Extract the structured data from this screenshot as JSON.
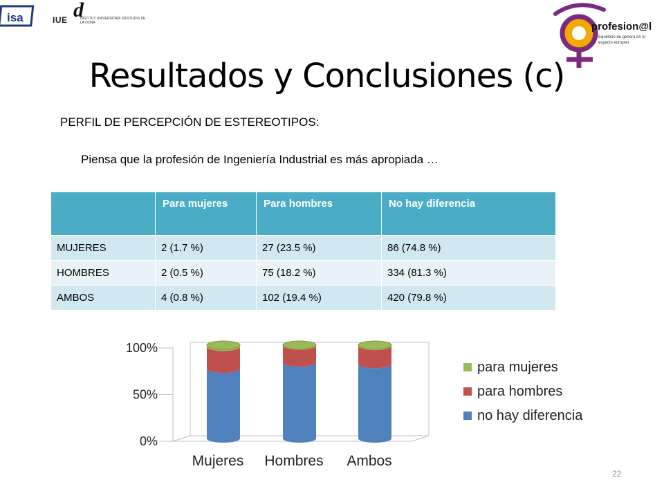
{
  "logos": {
    "isa": "isa",
    "iue": "IUE",
    "iue_d": "d",
    "iue_sub": "INSTITUT UNIVERSITARI D'ESTUDIS DE LA DONA",
    "profesional": "profesion@l",
    "profesional_sub": "Equilibrio de genero en el espacio europeo"
  },
  "slide": {
    "title": "Resultados y Conclusiones (c)",
    "section": "PERFIL DE PERCEPCIÓN DE ESTEREOTIPOS:",
    "question": "Piensa que la profesión de Ingeniería Industrial es más apropiada …",
    "page_number": "22"
  },
  "table": {
    "headers": [
      "",
      "Para mujeres",
      "Para hombres",
      "No hay diferencia"
    ],
    "rows": [
      [
        "MUJERES",
        "2  (1.7 %)",
        "27  (23.5 %)",
        "86  (74.8 %)"
      ],
      [
        "HOMBRES",
        "2  (0.5 %)",
        "75  (18.2 %)",
        "334  (81.3 %)"
      ],
      [
        "AMBOS",
        "4  (0.8 %)",
        "102 (19.4 %)",
        "420 (79.8 %)"
      ]
    ]
  },
  "chart_data": {
    "type": "bar",
    "stacked": true,
    "categories": [
      "Mujeres",
      "Hombres",
      "Ambos"
    ],
    "series": [
      {
        "name": "no hay diferencia",
        "values": [
          74.8,
          81.3,
          79.8
        ],
        "color": "#4f81bd"
      },
      {
        "name": "para hombres",
        "values": [
          23.5,
          18.2,
          19.4
        ],
        "color": "#c0504d"
      },
      {
        "name": "para mujeres",
        "values": [
          1.7,
          0.5,
          0.8
        ],
        "color": "#9bbb59"
      }
    ],
    "ytick_labels": [
      "0%",
      "50%",
      "100%"
    ],
    "ylim": [
      0,
      100
    ],
    "legend_order": [
      "para mujeres",
      "para hombres",
      "no hay diferencia"
    ],
    "legend_position": "right"
  }
}
